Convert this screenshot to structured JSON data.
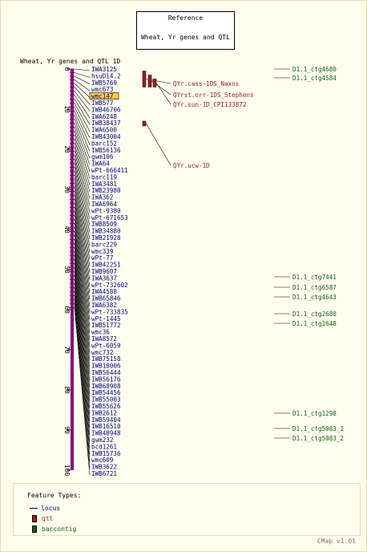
{
  "reference": {
    "label": "Reference",
    "species": "Wheat, Yr genes and QTL"
  },
  "map_title": "Wheat, Yr genes and QTL 1D",
  "axis_ticks": [
    0,
    10,
    20,
    30,
    40,
    50,
    60,
    70,
    80,
    90,
    100
  ],
  "highlight_color": "#ffcc44",
  "colors": {
    "locus": "#8a0080",
    "qtl": "#9a2020",
    "contig": "#106010",
    "label": "#000080"
  },
  "markers": [
    {
      "name": "IWA3125",
      "pos": 0.0
    },
    {
      "name": "hsuD14.2",
      "pos": 0.9
    },
    {
      "name": "IWB5769",
      "pos": 1.8
    },
    {
      "name": "wmc673",
      "pos": 2.7
    },
    {
      "name": "wmc147",
      "pos": 3.6,
      "highlight": true
    },
    {
      "name": "IWB577",
      "pos": 4.5
    },
    {
      "name": "IWB46706",
      "pos": 5.5
    },
    {
      "name": "IWA6248",
      "pos": 6.5
    },
    {
      "name": "IWB38437",
      "pos": 7.5
    },
    {
      "name": "IWA6500",
      "pos": 8.5
    },
    {
      "name": "IWB43004",
      "pos": 9.5
    },
    {
      "name": "barc152",
      "pos": 10.5
    },
    {
      "name": "IWB56136",
      "pos": 11.5
    },
    {
      "name": "gwm106",
      "pos": 12.5
    },
    {
      "name": "IWA64",
      "pos": 13.5
    },
    {
      "name": "wPt-666411",
      "pos": 14.5
    },
    {
      "name": "barc119",
      "pos": 15.5
    },
    {
      "name": "IWA3481",
      "pos": 16.5
    },
    {
      "name": "IWB23980",
      "pos": 17.5
    },
    {
      "name": "IWA362",
      "pos": 18.5
    },
    {
      "name": "IWA6964",
      "pos": 19.5
    },
    {
      "name": "wPt-9380",
      "pos": 20.5
    },
    {
      "name": "wPt-671653",
      "pos": 21.5
    },
    {
      "name": "IWB8509",
      "pos": 22.5
    },
    {
      "name": "IWB34880",
      "pos": 23.5
    },
    {
      "name": "IWB21928",
      "pos": 24.5
    },
    {
      "name": "barc229",
      "pos": 25.5
    },
    {
      "name": "wmc339",
      "pos": 26.5
    },
    {
      "name": "wPt-77",
      "pos": 27.5
    },
    {
      "name": "IWB42251",
      "pos": 28.5
    },
    {
      "name": "IWB9607",
      "pos": 29.5
    },
    {
      "name": "IWA3637",
      "pos": 30.5
    },
    {
      "name": "wPt-732602",
      "pos": 31.5
    },
    {
      "name": "IWA4588",
      "pos": 32.5
    },
    {
      "name": "IWB65846",
      "pos": 33.5
    },
    {
      "name": "IWA6382",
      "pos": 34.5
    },
    {
      "name": "wPt-733835",
      "pos": 35.5
    },
    {
      "name": "wPt-1445",
      "pos": 36.5
    },
    {
      "name": "IWB51772",
      "pos": 37.5
    },
    {
      "name": "wmc36",
      "pos": 38.5
    },
    {
      "name": "IWA8572",
      "pos": 39.5
    },
    {
      "name": "wPt-6059",
      "pos": 40.5
    },
    {
      "name": "wmc732",
      "pos": 41.5
    },
    {
      "name": "IWB75158",
      "pos": 42.5
    },
    {
      "name": "IWB18006",
      "pos": 43.5
    },
    {
      "name": "IWB56444",
      "pos": 44.5
    },
    {
      "name": "IWB56176",
      "pos": 45.5
    },
    {
      "name": "IWB68908",
      "pos": 46.5
    },
    {
      "name": "IWB54456",
      "pos": 47.5
    },
    {
      "name": "IWB55003",
      "pos": 48.5
    },
    {
      "name": "IWB55626",
      "pos": 49.5
    },
    {
      "name": "IWB2612",
      "pos": 50.5
    },
    {
      "name": "IWB59404",
      "pos": 51.5
    },
    {
      "name": "IWB16510",
      "pos": 52.5
    },
    {
      "name": "IWB48948",
      "pos": 53.5
    },
    {
      "name": "gwm232",
      "pos": 54.5
    },
    {
      "name": "bcd1261",
      "pos": 55.5
    },
    {
      "name": "IWB15736",
      "pos": 56.5
    },
    {
      "name": "wmc609",
      "pos": 57.5
    },
    {
      "name": "IWB3622",
      "pos": 58.5
    },
    {
      "name": "IWB6721",
      "pos": 59.5
    }
  ],
  "qtls": [
    {
      "label": "QYr.cass-1DS_Naxos",
      "start": 0.5,
      "end": 4.5
    },
    {
      "label": "QYrst.orr-1DS_Stephens",
      "start": 1.5,
      "end": 4.5
    },
    {
      "label": "QYr.sun-1D_CPI133872",
      "start": 2.5,
      "end": 4.5
    },
    {
      "label": "QYr.ucw-1D",
      "start": 13.0,
      "end": 14.0
    }
  ],
  "contigs": [
    {
      "label": "D1.1_ctg4680",
      "pos": 0.0
    },
    {
      "label": "D1.1_ctg4584",
      "pos": 1.2
    },
    {
      "label": "D1.1_ctg7441",
      "pos": 31.0
    },
    {
      "label": "D1.1_ctg6587",
      "pos": 32.3
    },
    {
      "label": "D1.1_ctg4643",
      "pos": 33.6
    },
    {
      "label": "D1.1_ctg2680",
      "pos": 36.0
    },
    {
      "label": "D1.1_ctg1648",
      "pos": 37.3
    },
    {
      "label": "D1.1_ctg1298",
      "pos": 50.5
    },
    {
      "label": "D1.1_ctg5083_1",
      "pos": 53.0
    },
    {
      "label": "D1.1_ctg5083_2",
      "pos": 54.3
    }
  ],
  "legend": {
    "title": "Feature Types:",
    "items": [
      {
        "label": "locus",
        "kind": "line",
        "color": "#000080"
      },
      {
        "label": "qtl",
        "kind": "box",
        "color": "#9a2020"
      },
      {
        "label": "baccontig",
        "kind": "box",
        "color": "#106010"
      }
    ]
  },
  "footer": "CMap v1.01"
}
